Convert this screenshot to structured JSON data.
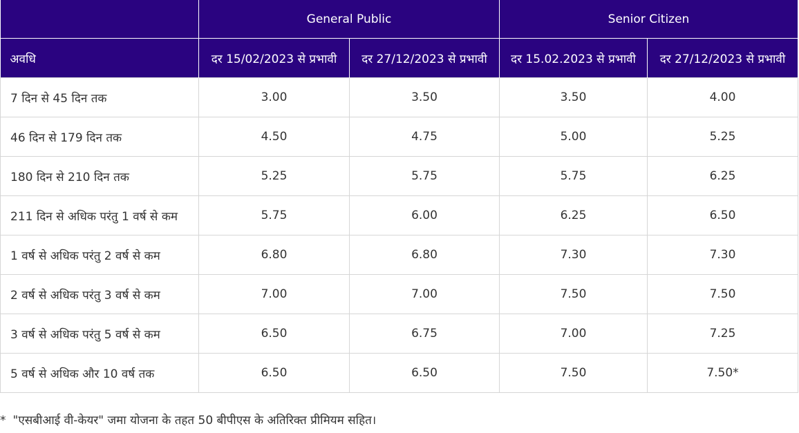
{
  "table": {
    "group_headers": {
      "general": "General Public",
      "senior": "Senior Citizen"
    },
    "sub_headers": {
      "duration": "अवधि",
      "gen_old": "दर 15/02/2023 से प्रभावी",
      "gen_new": "दर 27/12/2023 से प्रभावी",
      "sen_old": "दर 15.02.2023 से प्रभावी",
      "sen_new": "दर 27/12/2023 से प्रभावी"
    },
    "rows": [
      {
        "duration": "7 दिन से 45 दिन तक",
        "gen_old": "3.00",
        "gen_new": "3.50",
        "sen_old": "3.50",
        "sen_new": "4.00"
      },
      {
        "duration": "46 दिन से 179 दिन तक",
        "gen_old": "4.50",
        "gen_new": "4.75",
        "sen_old": "5.00",
        "sen_new": "5.25"
      },
      {
        "duration": "180 दिन से 210 दिन तक",
        "gen_old": "5.25",
        "gen_new": "5.75",
        "sen_old": "5.75",
        "sen_new": "6.25"
      },
      {
        "duration": "211 दिन से अधिक परंतु 1 वर्ष से कम",
        "gen_old": "5.75",
        "gen_new": "6.00",
        "sen_old": "6.25",
        "sen_new": "6.50"
      },
      {
        "duration": "1 वर्ष से अधिक परंतु 2 वर्ष से कम",
        "gen_old": "6.80",
        "gen_new": "6.80",
        "sen_old": "7.30",
        "sen_new": "7.30"
      },
      {
        "duration": "2 वर्ष से अधिक परंतु 3 वर्ष से कम",
        "gen_old": "7.00",
        "gen_new": "7.00",
        "sen_old": "7.50",
        "sen_new": "7.50"
      },
      {
        "duration": "3 वर्ष से अधिक परंतु 5 वर्ष से कम",
        "gen_old": "6.50",
        "gen_new": "6.75",
        "sen_old": "7.00",
        "sen_new": "7.25"
      },
      {
        "duration": "5 वर्ष से अधिक और 10 वर्ष तक",
        "gen_old": "6.50",
        "gen_new": "6.50",
        "sen_old": "7.50",
        "sen_new": "7.50*"
      }
    ]
  },
  "footnote": {
    "marker": "*",
    "text": "\"एसबीआई वी-केयर\" जमा योजना के तहत 50 बीपीएस के अतिरिक्त प्रीमियम सहित।"
  },
  "colors": {
    "header_bg": "#2a0380",
    "header_text": "#ffffff",
    "border": "#d6d6d6",
    "body_text": "#333333"
  }
}
